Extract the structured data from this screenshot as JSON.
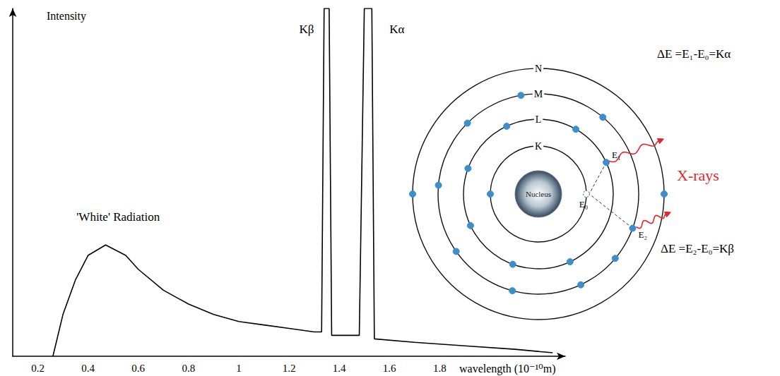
{
  "chart_data": {
    "type": "line",
    "x_label": "wavelength (10⁻¹⁰m)",
    "y_label": "Intensity",
    "x": [
      0.26,
      0.3,
      0.35,
      0.4,
      0.47,
      0.55,
      0.6,
      0.7,
      0.8,
      0.9,
      1.0,
      1.1,
      1.2,
      1.3,
      1.33,
      1.34,
      1.36,
      1.37,
      1.48,
      1.5,
      1.53,
      1.54,
      1.7,
      1.9,
      2.1,
      2.25
    ],
    "values": [
      0,
      12,
      22,
      29,
      32,
      29,
      25,
      19,
      15,
      12,
      10,
      9,
      8,
      7,
      7,
      100,
      100,
      6,
      6,
      100,
      100,
      5,
      4,
      3,
      2,
      1
    ],
    "color": "#000000",
    "xlim": [
      0.1,
      2.3
    ],
    "xticks": [
      0.2,
      0.4,
      0.6,
      0.8,
      1.0,
      1.2,
      1.4,
      1.6,
      1.8
    ],
    "ylim": [
      0,
      100
    ],
    "tick_labels": "x",
    "grid": false,
    "annotations": [
      {
        "text": "'White' Radiation",
        "x": 0.52,
        "y": 40
      },
      {
        "text": "Kβ",
        "x": 1.27,
        "y": 94
      },
      {
        "text": "Kα",
        "x": 1.63,
        "y": 94
      }
    ]
  },
  "diagram": {
    "shells": [
      "K",
      "L",
      "M",
      "N"
    ],
    "nucleus": "Nucleus",
    "levels": [
      "E₀",
      "E₁",
      "E₂"
    ],
    "transitions": [
      "ΔE =E₁-E₀=Kα",
      "ΔE =E₂-E₀=Kβ"
    ],
    "emission": "X-rays"
  }
}
